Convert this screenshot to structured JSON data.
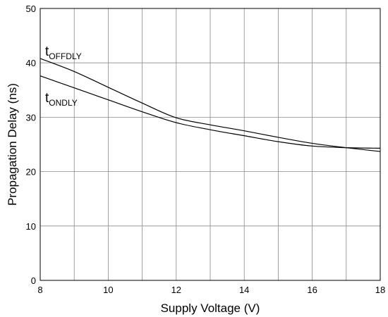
{
  "chart_data": {
    "type": "line",
    "title": "",
    "xlabel": "Supply Voltage (V)",
    "ylabel": "Propagation Delay (ns)",
    "xlim": [
      8,
      18
    ],
    "ylim": [
      0,
      50
    ],
    "xticks": [
      8,
      10,
      12,
      14,
      16,
      18
    ],
    "yticks": [
      0,
      10,
      20,
      30,
      40,
      50
    ],
    "grid": true,
    "series": [
      {
        "name": "OFFDLY",
        "name_main": "t",
        "name_sub": "OFFDLY",
        "x": [
          8,
          9,
          10,
          11,
          12,
          13,
          14,
          15,
          16,
          17,
          18
        ],
        "y": [
          40.8,
          38.4,
          35.5,
          32.6,
          29.9,
          28.6,
          27.5,
          26.3,
          25.2,
          24.4,
          23.7
        ]
      },
      {
        "name": "ONDLY",
        "name_main": "t",
        "name_sub": "ONDLY",
        "x": [
          8,
          9,
          10,
          11,
          12,
          13,
          14,
          15,
          16,
          17,
          18
        ],
        "y": [
          37.6,
          35.4,
          33.2,
          31.0,
          29.0,
          27.7,
          26.6,
          25.5,
          24.7,
          24.4,
          24.3
        ]
      }
    ]
  }
}
